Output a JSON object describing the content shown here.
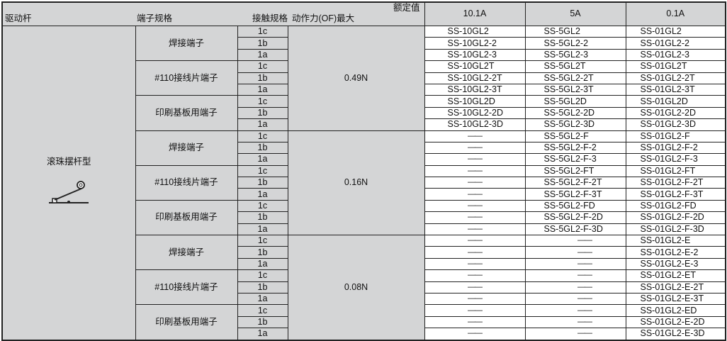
{
  "header": {
    "driver": "驱动杆",
    "terminal": "端子规格",
    "contact": "接触规格",
    "force": "动作力(OF)最大",
    "rated": "额定值",
    "amps": [
      "10.1A",
      "5A",
      "0.1A"
    ]
  },
  "driver": {
    "label": "滚珠摆杆型",
    "icon": "roller-lever-icon"
  },
  "groups": [
    {
      "force": "0.49N",
      "terminals": [
        {
          "label": "焊接端子",
          "rows": [
            [
              "1c",
              "SS-10GL2",
              "SS-5GL2",
              "SS-01GL2"
            ],
            [
              "1b",
              "SS-10GL2-2",
              "SS-5GL2-2",
              "SS-01GL2-2"
            ],
            [
              "1a",
              "SS-10GL2-3",
              "SS-5GL2-3",
              "SS-01GL2-3"
            ]
          ]
        },
        {
          "label": "#110接线片端子",
          "rows": [
            [
              "1c",
              "SS-10GL2T",
              "SS-5GL2T",
              "SS-01GL2T"
            ],
            [
              "1b",
              "SS-10GL2-2T",
              "SS-5GL2-2T",
              "SS-01GL2-2T"
            ],
            [
              "1a",
              "SS-10GL2-3T",
              "SS-5GL2-3T",
              "SS-01GL2-3T"
            ]
          ]
        },
        {
          "label": "印刷基板用端子",
          "rows": [
            [
              "1c",
              "SS-10GL2D",
              "SS-5GL2D",
              "SS-01GL2D"
            ],
            [
              "1b",
              "SS-10GL2-2D",
              "SS-5GL2-2D",
              "SS-01GL2-2D"
            ],
            [
              "1a",
              "SS-10GL2-3D",
              "SS-5GL2-3D",
              "SS-01GL2-3D"
            ]
          ]
        }
      ]
    },
    {
      "force": "0.16N",
      "terminals": [
        {
          "label": "焊接端子",
          "rows": [
            [
              "1c",
              "——",
              "SS-5GL2-F",
              "SS-01GL2-F"
            ],
            [
              "1b",
              "——",
              "SS-5GL2-F-2",
              "SS-01GL2-F-2"
            ],
            [
              "1a",
              "——",
              "SS-5GL2-F-3",
              "SS-01GL2-F-3"
            ]
          ]
        },
        {
          "label": "#110接线片端子",
          "rows": [
            [
              "1c",
              "——",
              "SS-5GL2-FT",
              "SS-01GL2-FT"
            ],
            [
              "1b",
              "——",
              "SS-5GL2-F-2T",
              "SS-01GL2-F-2T"
            ],
            [
              "1a",
              "——",
              "SS-5GL2-F-3T",
              "SS-01GL2-F-3T"
            ]
          ]
        },
        {
          "label": "印刷基板用端子",
          "rows": [
            [
              "1c",
              "——",
              "SS-5GL2-FD",
              "SS-01GL2-FD"
            ],
            [
              "1b",
              "——",
              "SS-5GL2-F-2D",
              "SS-01GL2-F-2D"
            ],
            [
              "1a",
              "——",
              "SS-5GL2-F-3D",
              "SS-01GL2-F-3D"
            ]
          ]
        }
      ]
    },
    {
      "force": "0.08N",
      "terminals": [
        {
          "label": "焊接端子",
          "rows": [
            [
              "1c",
              "——",
              "——",
              "SS-01GL2-E"
            ],
            [
              "1b",
              "——",
              "——",
              "SS-01GL2-E-2"
            ],
            [
              "1a",
              "——",
              "——",
              "SS-01GL2-E-3"
            ]
          ]
        },
        {
          "label": "#110接线片端子",
          "rows": [
            [
              "1c",
              "——",
              "——",
              "SS-01GL2-ET"
            ],
            [
              "1b",
              "——",
              "——",
              "SS-01GL2-E-2T"
            ],
            [
              "1a",
              "——",
              "——",
              "SS-01GL2-E-3T"
            ]
          ]
        },
        {
          "label": "印刷基板用端子",
          "rows": [
            [
              "1c",
              "——",
              "——",
              "SS-01GL2-ED"
            ],
            [
              "1b",
              "——",
              "——",
              "SS-01GL2-E-2D"
            ],
            [
              "1a",
              "——",
              "——",
              "SS-01GL2-E-3D"
            ]
          ]
        }
      ]
    }
  ]
}
